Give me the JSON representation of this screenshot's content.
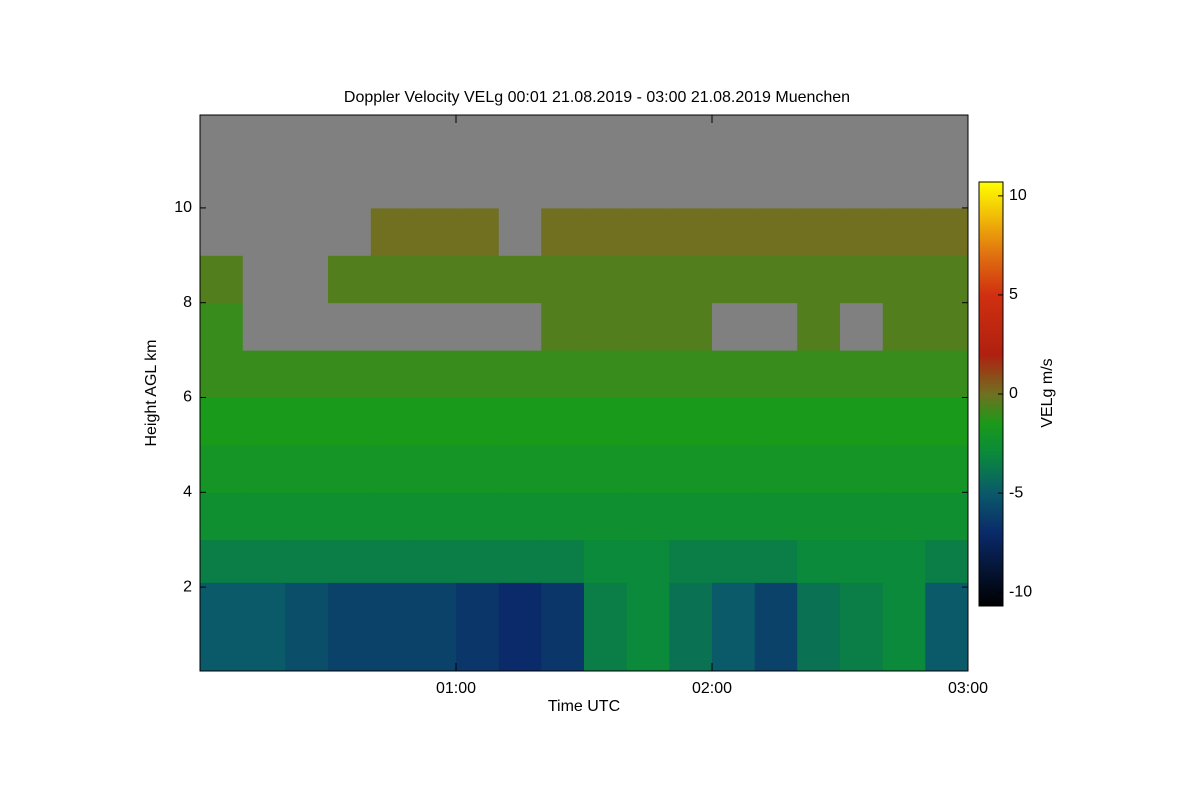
{
  "chart_data": {
    "type": "heatmap",
    "title": "Doppler Velocity VELg   00:01 21.08.2019 - 03:00 21.08.2019 Muenchen",
    "x_label": "Time UTC",
    "y_label": "Height AGL km",
    "colorbar_label": "VELg m/s",
    "xlim": [
      0,
      3
    ],
    "xticks": [
      {
        "value": 1,
        "label": "01:00"
      },
      {
        "value": 2,
        "label": "02:00"
      },
      {
        "value": 3,
        "label": "03:00"
      }
    ],
    "ylim": [
      0.23,
      11.96
    ],
    "yticks": [
      2,
      4,
      6,
      8,
      10
    ],
    "clim": [
      -10.7,
      10.7
    ],
    "cticks": [
      -10,
      -5,
      0,
      5,
      10
    ],
    "nodata_color": "#808080",
    "colormap": [
      [
        -10.7,
        "#000000"
      ],
      [
        -7,
        "#0a2a6a"
      ],
      [
        -5,
        "#0a5a6a"
      ],
      [
        -3,
        "#0a8a3a"
      ],
      [
        -1.5,
        "#1a9a1a"
      ],
      [
        0,
        "#707020"
      ],
      [
        2,
        "#b02010"
      ],
      [
        5,
        "#d03010"
      ],
      [
        7,
        "#e07010"
      ],
      [
        10.7,
        "#ffff00"
      ]
    ],
    "x_edges": [
      0,
      0.167,
      0.333,
      0.5,
      0.667,
      0.833,
      1,
      1.167,
      1.333,
      1.5,
      1.667,
      1.833,
      2,
      2.167,
      2.333,
      2.5,
      2.667,
      2.833,
      3
    ],
    "y_edges": [
      0.23,
      2.1,
      3,
      4,
      5,
      6,
      7,
      8,
      9,
      10,
      11.96
    ],
    "z": [
      [
        -5,
        -5,
        -5.5,
        -6,
        -6,
        -6,
        -6.5,
        -7,
        -6.5,
        -3.5,
        -3,
        -4,
        -5,
        -6,
        -4,
        -3.5,
        -3,
        -5
      ],
      [
        -3.5,
        -3.5,
        -3.5,
        -3.5,
        -3.5,
        -3.5,
        -3.5,
        -3.5,
        -3.5,
        -3,
        -3,
        -3.5,
        -3.5,
        -3.5,
        -3,
        -3,
        -3,
        -3.5
      ],
      [
        -2.5,
        -2.5,
        -2.5,
        -2.5,
        -2.5,
        -2.5,
        -2.5,
        -2.5,
        -2.5,
        -2.5,
        -2.5,
        -2.5,
        -2.5,
        -2.5,
        -2.5,
        -2.5,
        -2.5,
        -2.5
      ],
      [
        -2,
        -2,
        -2,
        -2,
        -2,
        -2,
        -2,
        -2,
        -2,
        -2,
        -2,
        -2,
        -2,
        -2,
        -2,
        -2,
        -2,
        -2
      ],
      [
        -1.5,
        -1.5,
        -1.5,
        -1.5,
        -1.5,
        -1.5,
        -1.5,
        -1.5,
        -1.5,
        -1.5,
        -1.5,
        -1.5,
        -1.5,
        -1.5,
        -1.5,
        -1.5,
        -1.5,
        -1.5
      ],
      [
        -1,
        -1,
        -1,
        -1,
        -1,
        -1,
        -1,
        -1,
        -1,
        -1,
        -1,
        -1,
        -1,
        -1,
        -1,
        -1,
        -1,
        -1
      ],
      [
        -1,
        null,
        null,
        null,
        null,
        null,
        null,
        null,
        -0.5,
        -0.5,
        -0.5,
        -0.5,
        null,
        null,
        -0.5,
        null,
        -0.5,
        -0.5
      ],
      [
        -0.5,
        null,
        null,
        -0.5,
        -0.5,
        -0.5,
        -0.5,
        -0.5,
        -0.5,
        -0.5,
        -0.5,
        -0.5,
        -0.5,
        -0.5,
        -0.5,
        -0.5,
        -0.5,
        -0.5
      ],
      [
        null,
        null,
        null,
        null,
        0,
        0,
        0,
        null,
        0,
        0,
        0,
        0,
        0,
        0,
        0,
        0,
        0,
        0
      ],
      [
        null,
        null,
        null,
        null,
        null,
        null,
        null,
        null,
        null,
        null,
        null,
        null,
        null,
        null,
        null,
        null,
        null,
        null
      ]
    ]
  }
}
